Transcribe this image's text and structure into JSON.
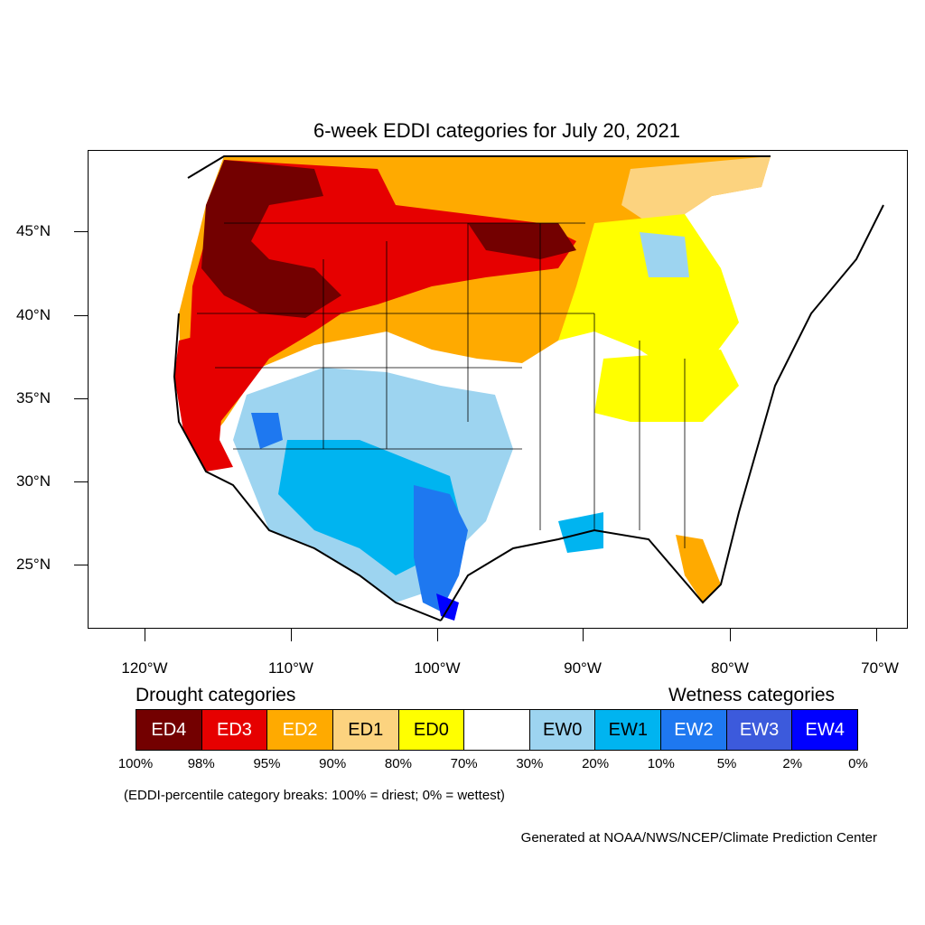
{
  "title": "6-week EDDI categories for July 20, 2021",
  "latitude_labels": [
    "45°N",
    "40°N",
    "35°N",
    "30°N",
    "25°N"
  ],
  "longitude_labels": [
    "120°W",
    "110°W",
    "100°W",
    "90°W",
    "80°W",
    "70°W"
  ],
  "legend": {
    "drought_heading": "Drought categories",
    "wetness_heading": "Wetness categories",
    "categories": [
      {
        "label": "ED4",
        "color": "#730000",
        "text_color": "#ffffff"
      },
      {
        "label": "ED3",
        "color": "#e60000",
        "text_color": "#ffffff"
      },
      {
        "label": "ED2",
        "color": "#ffaa00",
        "text_color": "#ffffff"
      },
      {
        "label": "ED1",
        "color": "#fcd37f",
        "text_color": "#000000"
      },
      {
        "label": "ED0",
        "color": "#ffff00",
        "text_color": "#000000"
      },
      {
        "label": "",
        "color": "#ffffff",
        "text_color": "#000000"
      },
      {
        "label": "EW0",
        "color": "#9dd4f0",
        "text_color": "#000000"
      },
      {
        "label": "EW1",
        "color": "#00b4f0",
        "text_color": "#000000"
      },
      {
        "label": "EW2",
        "color": "#1e78f0",
        "text_color": "#ffffff"
      },
      {
        "label": "EW3",
        "color": "#3c5adc",
        "text_color": "#ffffff"
      },
      {
        "label": "EW4",
        "color": "#0000ff",
        "text_color": "#ffffff"
      }
    ],
    "breaks": [
      "100%",
      "98%",
      "95%",
      "90%",
      "80%",
      "70%",
      "30%",
      "20%",
      "10%",
      "5%",
      "2%",
      "0%"
    ]
  },
  "note": "(EDDI-percentile category breaks: 100% = driest; 0% = wettest)",
  "credit": "Generated at NOAA/NWS/NCEP/Climate Prediction Center"
}
